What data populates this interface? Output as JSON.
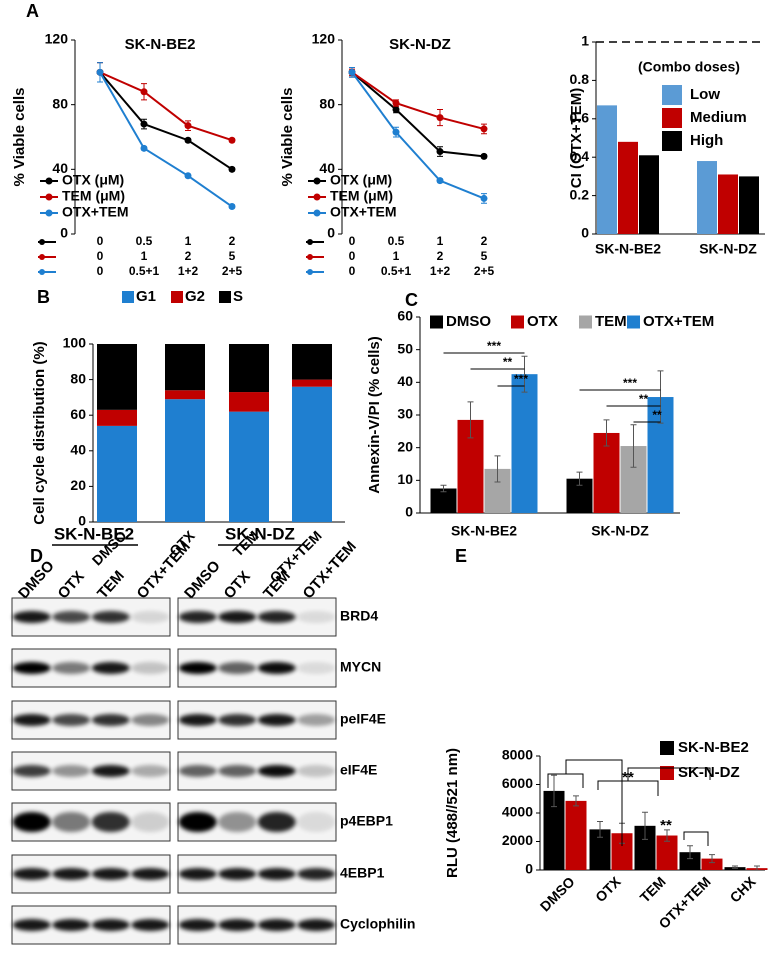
{
  "panel_labels": [
    "A",
    "B",
    "C",
    "D",
    "E"
  ],
  "chart_data": [
    {
      "type": "line",
      "title": "SK-N-BE2",
      "y_label": "% Viable cells",
      "ylim": [
        0,
        120
      ],
      "yticks": [
        0,
        40,
        80,
        120
      ],
      "series": [
        {
          "name": "OTX (μM)",
          "color": "#000000",
          "values": [
            100,
            68,
            58,
            40
          ],
          "errors": [
            6,
            3,
            1,
            1
          ],
          "dose_labels": [
            "0",
            "0.5",
            "1",
            "2"
          ]
        },
        {
          "name": "TEM (μM)",
          "color": "#c00000",
          "values": [
            100,
            88,
            67,
            58
          ],
          "errors": [
            6,
            5,
            3,
            1
          ],
          "dose_labels": [
            "0",
            "1",
            "2",
            "5"
          ]
        },
        {
          "name": "OTX+TEM",
          "color": "#1f7fd0",
          "values": [
            100,
            53,
            36,
            17
          ],
          "errors": [
            6,
            1,
            1,
            1
          ],
          "dose_labels": [
            "0",
            "0.5+1",
            "1+2",
            "2+5"
          ]
        }
      ]
    },
    {
      "type": "line",
      "title": "SK-N-DZ",
      "y_label": "% Viable cells",
      "ylim": [
        0,
        120
      ],
      "yticks": [
        0,
        40,
        80,
        120
      ],
      "series": [
        {
          "name": "OTX (μM)",
          "color": "#000000",
          "values": [
            100,
            77,
            51,
            48
          ],
          "errors": [
            3,
            2,
            3,
            1
          ],
          "dose_labels": [
            "0",
            "0.5",
            "1",
            "2"
          ]
        },
        {
          "name": "TEM (μM)",
          "color": "#c00000",
          "values": [
            100,
            81,
            72,
            65
          ],
          "errors": [
            2,
            2,
            5,
            3
          ],
          "dose_labels": [
            "0",
            "1",
            "2",
            "5"
          ]
        },
        {
          "name": "OTX+TEM",
          "color": "#1f7fd0",
          "values": [
            100,
            63,
            33,
            22
          ],
          "errors": [
            3,
            3,
            1,
            3
          ],
          "dose_labels": [
            "0",
            "0.5+1",
            "1+2",
            "2+5"
          ]
        }
      ]
    },
    {
      "type": "bar",
      "y_label": "CI (OTX+TEM)",
      "legend_title": "(Combo doses)",
      "categories": [
        "SK-N-BE2",
        "SK-N-DZ"
      ],
      "ylim": [
        0,
        1
      ],
      "yticks": [
        0,
        0.2,
        0.4,
        0.6,
        0.8,
        1
      ],
      "reference_line": 1,
      "series": [
        {
          "name": "Low",
          "color": "#5b9bd5",
          "values": [
            0.67,
            0.38
          ]
        },
        {
          "name": "Medium",
          "color": "#c00000",
          "values": [
            0.48,
            0.31
          ]
        },
        {
          "name": "High",
          "color": "#000000",
          "values": [
            0.41,
            0.3
          ]
        }
      ]
    },
    {
      "type": "stacked_bar",
      "y_label": "Cell cycle distribution (%)",
      "categories": [
        "DMSO",
        "OTX",
        "TEM",
        "OTX+TEM"
      ],
      "ylim": [
        0,
        100
      ],
      "yticks": [
        0,
        20,
        40,
        60,
        80,
        100
      ],
      "series": [
        {
          "name": "G1",
          "color": "#1f7fd0",
          "values": [
            54,
            69,
            62,
            76
          ]
        },
        {
          "name": "G2",
          "color": "#c00000",
          "values": [
            9,
            5,
            11,
            4
          ]
        },
        {
          "name": "S",
          "color": "#000000",
          "values": [
            37,
            26,
            27,
            20
          ]
        }
      ]
    },
    {
      "type": "bar",
      "y_label": "Annexin-V/PI  (% cells)",
      "categories": [
        "SK-N-BE2",
        "SK-N-DZ"
      ],
      "ylim": [
        0,
        60
      ],
      "yticks": [
        0,
        10,
        20,
        30,
        40,
        50,
        60
      ],
      "series": [
        {
          "name": "DMSO",
          "color": "#000000",
          "values": [
            7.5,
            10.5
          ],
          "errors": [
            1,
            2
          ]
        },
        {
          "name": "OTX",
          "color": "#c00000",
          "values": [
            28.5,
            24.5
          ],
          "errors": [
            5.5,
            4
          ]
        },
        {
          "name": "TEM",
          "color": "#a6a6a6",
          "values": [
            13.5,
            20.5
          ],
          "errors": [
            4,
            6.5
          ]
        },
        {
          "name": "OTX+TEM",
          "color": "#1f7fd0",
          "values": [
            42.5,
            35.5
          ],
          "errors": [
            5.5,
            8
          ]
        }
      ],
      "annotations": [
        "***",
        "**",
        "***",
        "***",
        "**",
        "**"
      ]
    },
    {
      "type": "bar",
      "y_label": "RLU (488//521 nm)",
      "categories": [
        "DMSO",
        "OTX",
        "TEM",
        "OTX+TEM",
        "CHX"
      ],
      "ylim": [
        0,
        8000
      ],
      "yticks": [
        0,
        2000,
        4000,
        6000,
        8000
      ],
      "series": [
        {
          "name": "SK-N-BE2",
          "color": "#000000",
          "values": [
            5550,
            2850,
            3100,
            1250,
            200
          ],
          "errors": [
            1100,
            550,
            950,
            450,
            80
          ]
        },
        {
          "name": "SK-N-DZ",
          "color": "#c00000",
          "values": [
            4850,
            2580,
            2420,
            800,
            130
          ],
          "errors": [
            350,
            700,
            400,
            280,
            150
          ]
        }
      ],
      "annotations": [
        "**",
        "**"
      ]
    }
  ],
  "blot": {
    "cell_lines": [
      "SK-N-BE2",
      "SK-N-DZ"
    ],
    "lanes": [
      "DMSO",
      "OTX",
      "TEM",
      "OTX+TEM"
    ],
    "proteins": [
      "BRD4",
      "MYCN",
      "peIF4E",
      "eIF4E",
      "p4EBP1",
      "4EBP1",
      "Cyclophilin"
    ]
  }
}
